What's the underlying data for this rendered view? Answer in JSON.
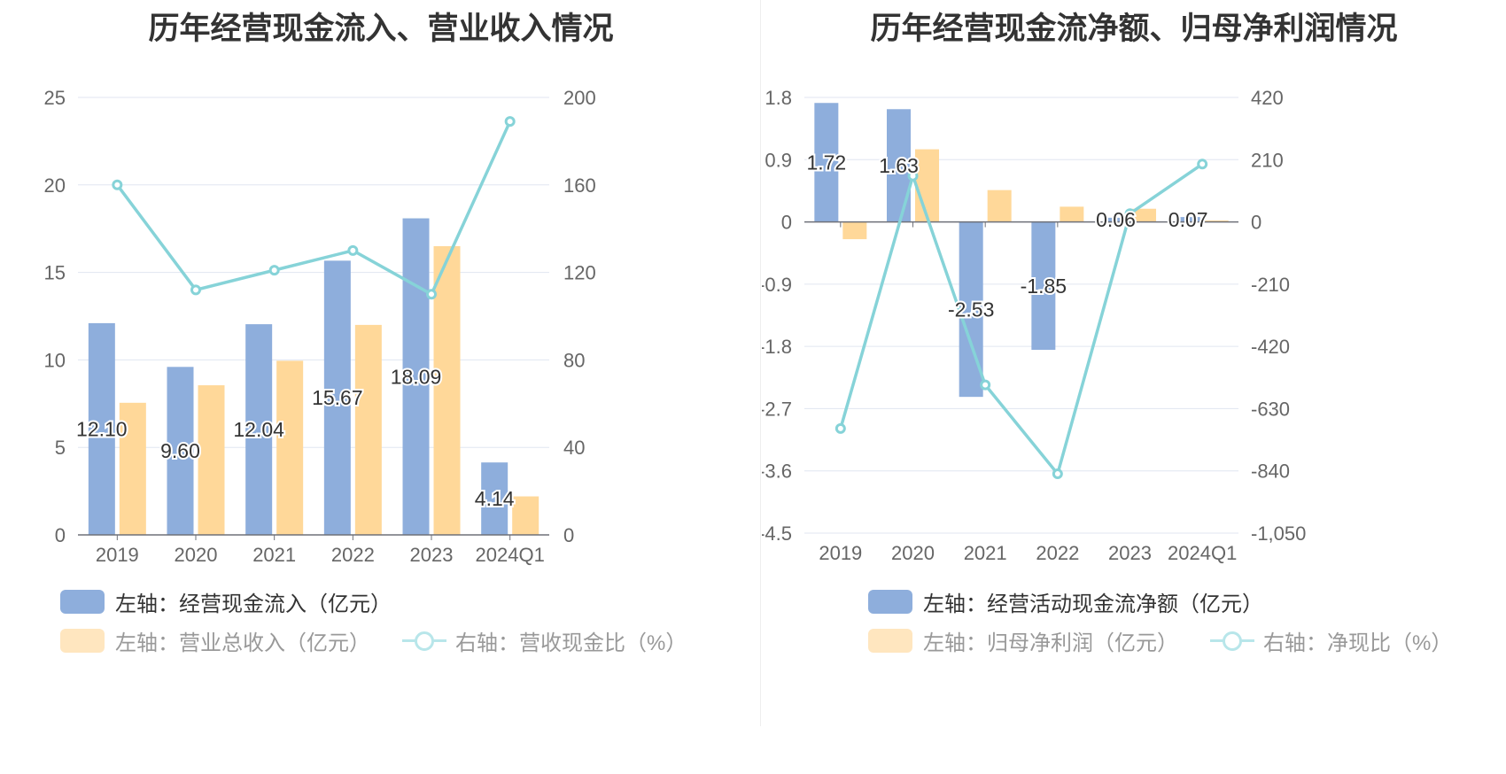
{
  "charts": [
    {
      "title": "历年经营现金流入、营业收入情况",
      "legend": [
        {
          "label": "左轴：经营现金流入（亿元）",
          "kind": "bar",
          "color": "#8eaedc",
          "active": true
        },
        {
          "label": "左轴：营业总收入（亿元）",
          "kind": "bar",
          "color": "#ffe6bf",
          "active": false
        },
        {
          "label": "右轴：营收现金比（%）",
          "kind": "line",
          "color": "#b8e6ea",
          "active": false
        }
      ]
    },
    {
      "title": "历年经营现金流净额、归母净利润情况",
      "legend": [
        {
          "label": "左轴：经营活动现金流净额（亿元）",
          "kind": "bar",
          "color": "#8eaedc",
          "active": true
        },
        {
          "label": "左轴：归母净利润（亿元）",
          "kind": "bar",
          "color": "#ffe6bf",
          "active": false
        },
        {
          "label": "右轴：净现比（%）",
          "kind": "line",
          "color": "#b8e6ea",
          "active": false
        }
      ]
    }
  ],
  "chart_data": [
    {
      "type": "bar",
      "title": "历年经营现金流入、营业收入情况",
      "categories": [
        "2019",
        "2020",
        "2021",
        "2022",
        "2023",
        "2024Q1"
      ],
      "ylim_left": [
        0,
        25
      ],
      "yticks_left": [
        "0",
        "5",
        "10",
        "15",
        "20",
        "25"
      ],
      "ylim_right": [
        0,
        200
      ],
      "yticks_right": [
        "0",
        "40",
        "80",
        "120",
        "160",
        "200"
      ],
      "grid": true,
      "legend_position": "bottom",
      "series": [
        {
          "name": "经营现金流入（亿元）",
          "type": "bar",
          "axis": "left",
          "color": "#8eaedc",
          "values": [
            12.1,
            9.6,
            12.04,
            15.67,
            18.09,
            4.14
          ],
          "labels": [
            "12.10",
            "9.60",
            "12.04",
            "15.67",
            "18.09",
            "4.14"
          ]
        },
        {
          "name": "营业总收入（亿元）",
          "type": "bar",
          "axis": "left",
          "color": "#ffd899",
          "values": [
            7.55,
            8.55,
            9.95,
            12.0,
            16.5,
            2.2
          ]
        },
        {
          "name": "营收现金比（%）",
          "type": "line",
          "axis": "right",
          "color": "#86d3d8",
          "values": [
            160,
            112,
            121,
            130,
            110,
            189
          ]
        }
      ]
    },
    {
      "type": "bar",
      "title": "历年经营现金流净额、归母净利润情况",
      "categories": [
        "2019",
        "2020",
        "2021",
        "2022",
        "2023",
        "2024Q1"
      ],
      "ylim_left": [
        -4.5,
        1.8
      ],
      "yticks_left": [
        "-4.5",
        "-3.6",
        "-2.7",
        "-1.8",
        "-0.9",
        "0",
        "0.9",
        "1.8"
      ],
      "ylim_right": [
        -1050,
        420
      ],
      "yticks_right": [
        "-1,050",
        "-840",
        "-630",
        "-420",
        "-210",
        "0",
        "210",
        "420"
      ],
      "grid": true,
      "legend_position": "bottom",
      "series": [
        {
          "name": "经营活动现金流净额（亿元）",
          "type": "bar",
          "axis": "left",
          "color": "#8eaedc",
          "values": [
            1.72,
            1.63,
            -2.53,
            -1.85,
            0.06,
            0.07
          ],
          "labels": [
            "1.72",
            "1.63",
            "-2.53",
            "-1.85",
            "0.06",
            "0.07"
          ]
        },
        {
          "name": "归母净利润（亿元）",
          "type": "bar",
          "axis": "left",
          "color": "#ffd899",
          "values": [
            -0.25,
            1.05,
            0.46,
            0.22,
            0.19,
            0.02
          ]
        },
        {
          "name": "净现比（%）",
          "type": "line",
          "axis": "right",
          "color": "#86d3d8",
          "values": [
            -697,
            155,
            -550,
            -850,
            28,
            195
          ]
        }
      ]
    }
  ]
}
